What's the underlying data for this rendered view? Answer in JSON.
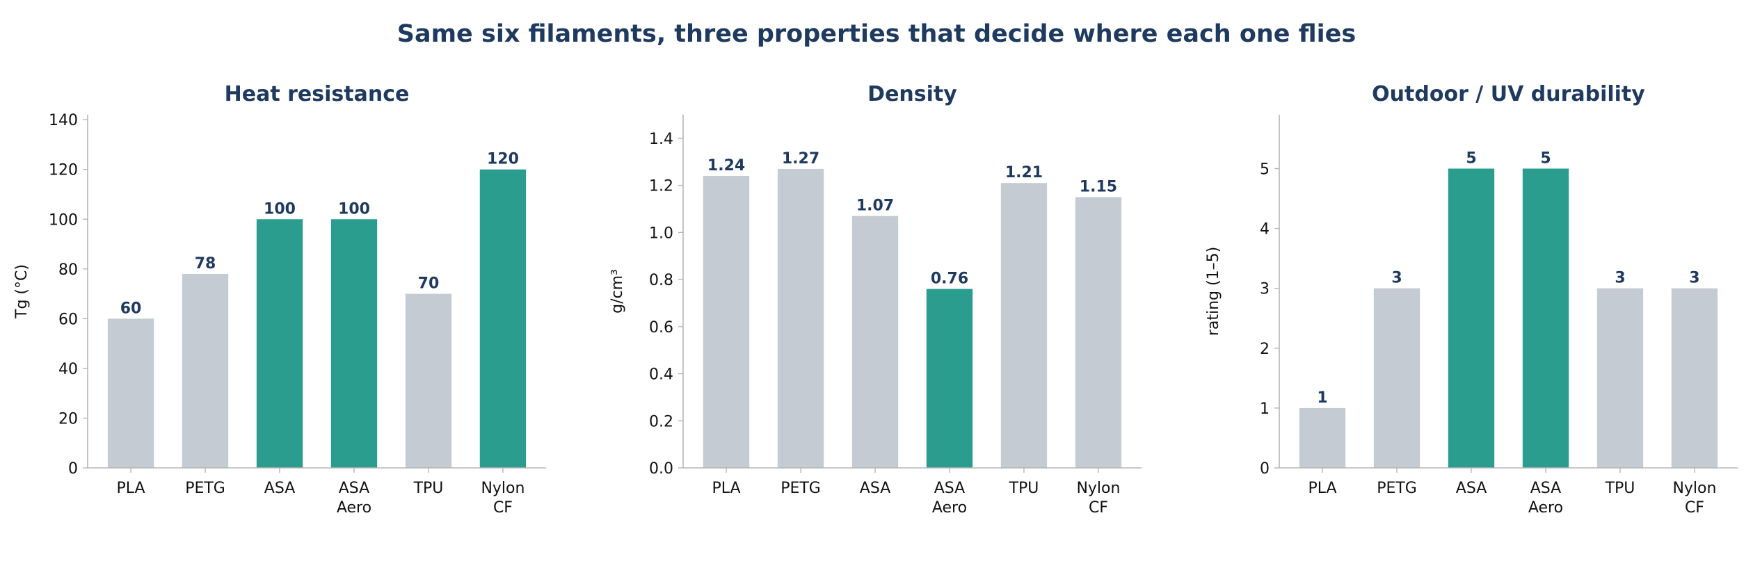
{
  "title": "Same six filaments, three properties that decide where each one flies",
  "colors": {
    "highlight": "#2a9d8f",
    "muted": "#c5cbd3",
    "title": "#1f3a5f",
    "axis": "#b5b5b5",
    "text": "#111111"
  },
  "chart_data": [
    {
      "type": "bar",
      "title": "Heat resistance",
      "xlabel": "",
      "ylabel": "Tg (°C)",
      "categories": [
        [
          "PLA"
        ],
        [
          "PETG"
        ],
        [
          "ASA"
        ],
        [
          "ASA",
          "Aero"
        ],
        [
          "TPU"
        ],
        [
          "Nylon",
          "CF"
        ]
      ],
      "values": [
        60,
        78,
        100,
        100,
        70,
        120
      ],
      "data_labels": [
        "60",
        "78",
        "100",
        "100",
        "70",
        "120"
      ],
      "highlighted": [
        false,
        false,
        true,
        true,
        false,
        true
      ],
      "ylim": [
        0,
        142
      ],
      "yticks": [
        0,
        20,
        40,
        60,
        80,
        100,
        120,
        140
      ],
      "ytick_labels": [
        "0",
        "20",
        "40",
        "60",
        "80",
        "100",
        "120",
        "140"
      ],
      "grid": false
    },
    {
      "type": "bar",
      "title": "Density",
      "xlabel": "",
      "ylabel": "g/cm³",
      "categories": [
        [
          "PLA"
        ],
        [
          "PETG"
        ],
        [
          "ASA"
        ],
        [
          "ASA",
          "Aero"
        ],
        [
          "TPU"
        ],
        [
          "Nylon",
          "CF"
        ]
      ],
      "values": [
        1.24,
        1.27,
        1.07,
        0.76,
        1.21,
        1.15
      ],
      "data_labels": [
        "1.24",
        "1.27",
        "1.07",
        "0.76",
        "1.21",
        "1.15"
      ],
      "highlighted": [
        false,
        false,
        false,
        true,
        false,
        false
      ],
      "ylim": [
        0,
        1.5
      ],
      "yticks": [
        0,
        0.2,
        0.4,
        0.6,
        0.8,
        1.0,
        1.2,
        1.4
      ],
      "ytick_labels": [
        "0.0",
        "0.2",
        "0.4",
        "0.6",
        "0.8",
        "1.0",
        "1.2",
        "1.4"
      ],
      "grid": false
    },
    {
      "type": "bar",
      "title": "Outdoor / UV durability",
      "xlabel": "",
      "ylabel": "rating (1–5)",
      "categories": [
        [
          "PLA"
        ],
        [
          "PETG"
        ],
        [
          "ASA"
        ],
        [
          "ASA",
          "Aero"
        ],
        [
          "TPU"
        ],
        [
          "Nylon",
          "CF"
        ]
      ],
      "values": [
        1,
        3,
        5,
        5,
        3,
        3
      ],
      "data_labels": [
        "1",
        "3",
        "5",
        "5",
        "3",
        "3"
      ],
      "highlighted": [
        false,
        false,
        true,
        true,
        false,
        false
      ],
      "ylim": [
        0,
        5.9
      ],
      "yticks": [
        0,
        1,
        2,
        3,
        4,
        5
      ],
      "ytick_labels": [
        "0",
        "1",
        "2",
        "3",
        "4",
        "5"
      ],
      "grid": false
    }
  ]
}
